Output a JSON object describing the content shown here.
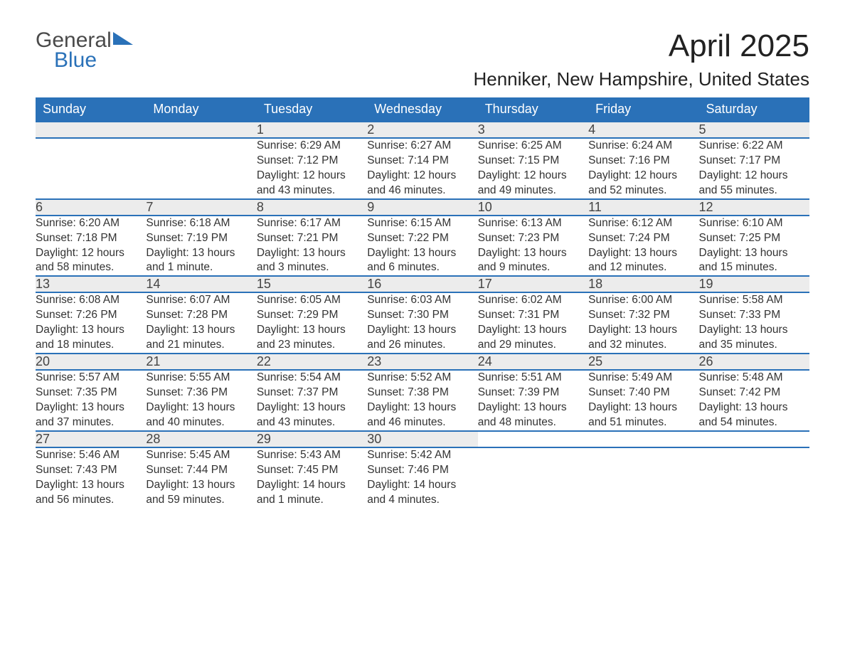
{
  "logo": {
    "line1": "General",
    "line2": "Blue"
  },
  "title": "April 2025",
  "subtitle": "Henniker, New Hampshire, United States",
  "day_headers": [
    "Sunday",
    "Monday",
    "Tuesday",
    "Wednesday",
    "Thursday",
    "Friday",
    "Saturday"
  ],
  "colors": {
    "header_bg": "#2a71b8",
    "header_text": "#ffffff",
    "daynum_bg": "#ececec",
    "row_divider": "#2a71b8",
    "text": "#333333",
    "page_bg": "#ffffff"
  },
  "weeks": [
    [
      null,
      null,
      {
        "n": "1",
        "sr": "Sunrise: 6:29 AM",
        "ss": "Sunset: 7:12 PM",
        "d1": "Daylight: 12 hours",
        "d2": "and 43 minutes."
      },
      {
        "n": "2",
        "sr": "Sunrise: 6:27 AM",
        "ss": "Sunset: 7:14 PM",
        "d1": "Daylight: 12 hours",
        "d2": "and 46 minutes."
      },
      {
        "n": "3",
        "sr": "Sunrise: 6:25 AM",
        "ss": "Sunset: 7:15 PM",
        "d1": "Daylight: 12 hours",
        "d2": "and 49 minutes."
      },
      {
        "n": "4",
        "sr": "Sunrise: 6:24 AM",
        "ss": "Sunset: 7:16 PM",
        "d1": "Daylight: 12 hours",
        "d2": "and 52 minutes."
      },
      {
        "n": "5",
        "sr": "Sunrise: 6:22 AM",
        "ss": "Sunset: 7:17 PM",
        "d1": "Daylight: 12 hours",
        "d2": "and 55 minutes."
      }
    ],
    [
      {
        "n": "6",
        "sr": "Sunrise: 6:20 AM",
        "ss": "Sunset: 7:18 PM",
        "d1": "Daylight: 12 hours",
        "d2": "and 58 minutes."
      },
      {
        "n": "7",
        "sr": "Sunrise: 6:18 AM",
        "ss": "Sunset: 7:19 PM",
        "d1": "Daylight: 13 hours",
        "d2": "and 1 minute."
      },
      {
        "n": "8",
        "sr": "Sunrise: 6:17 AM",
        "ss": "Sunset: 7:21 PM",
        "d1": "Daylight: 13 hours",
        "d2": "and 3 minutes."
      },
      {
        "n": "9",
        "sr": "Sunrise: 6:15 AM",
        "ss": "Sunset: 7:22 PM",
        "d1": "Daylight: 13 hours",
        "d2": "and 6 minutes."
      },
      {
        "n": "10",
        "sr": "Sunrise: 6:13 AM",
        "ss": "Sunset: 7:23 PM",
        "d1": "Daylight: 13 hours",
        "d2": "and 9 minutes."
      },
      {
        "n": "11",
        "sr": "Sunrise: 6:12 AM",
        "ss": "Sunset: 7:24 PM",
        "d1": "Daylight: 13 hours",
        "d2": "and 12 minutes."
      },
      {
        "n": "12",
        "sr": "Sunrise: 6:10 AM",
        "ss": "Sunset: 7:25 PM",
        "d1": "Daylight: 13 hours",
        "d2": "and 15 minutes."
      }
    ],
    [
      {
        "n": "13",
        "sr": "Sunrise: 6:08 AM",
        "ss": "Sunset: 7:26 PM",
        "d1": "Daylight: 13 hours",
        "d2": "and 18 minutes."
      },
      {
        "n": "14",
        "sr": "Sunrise: 6:07 AM",
        "ss": "Sunset: 7:28 PM",
        "d1": "Daylight: 13 hours",
        "d2": "and 21 minutes."
      },
      {
        "n": "15",
        "sr": "Sunrise: 6:05 AM",
        "ss": "Sunset: 7:29 PM",
        "d1": "Daylight: 13 hours",
        "d2": "and 23 minutes."
      },
      {
        "n": "16",
        "sr": "Sunrise: 6:03 AM",
        "ss": "Sunset: 7:30 PM",
        "d1": "Daylight: 13 hours",
        "d2": "and 26 minutes."
      },
      {
        "n": "17",
        "sr": "Sunrise: 6:02 AM",
        "ss": "Sunset: 7:31 PM",
        "d1": "Daylight: 13 hours",
        "d2": "and 29 minutes."
      },
      {
        "n": "18",
        "sr": "Sunrise: 6:00 AM",
        "ss": "Sunset: 7:32 PM",
        "d1": "Daylight: 13 hours",
        "d2": "and 32 minutes."
      },
      {
        "n": "19",
        "sr": "Sunrise: 5:58 AM",
        "ss": "Sunset: 7:33 PM",
        "d1": "Daylight: 13 hours",
        "d2": "and 35 minutes."
      }
    ],
    [
      {
        "n": "20",
        "sr": "Sunrise: 5:57 AM",
        "ss": "Sunset: 7:35 PM",
        "d1": "Daylight: 13 hours",
        "d2": "and 37 minutes."
      },
      {
        "n": "21",
        "sr": "Sunrise: 5:55 AM",
        "ss": "Sunset: 7:36 PM",
        "d1": "Daylight: 13 hours",
        "d2": "and 40 minutes."
      },
      {
        "n": "22",
        "sr": "Sunrise: 5:54 AM",
        "ss": "Sunset: 7:37 PM",
        "d1": "Daylight: 13 hours",
        "d2": "and 43 minutes."
      },
      {
        "n": "23",
        "sr": "Sunrise: 5:52 AM",
        "ss": "Sunset: 7:38 PM",
        "d1": "Daylight: 13 hours",
        "d2": "and 46 minutes."
      },
      {
        "n": "24",
        "sr": "Sunrise: 5:51 AM",
        "ss": "Sunset: 7:39 PM",
        "d1": "Daylight: 13 hours",
        "d2": "and 48 minutes."
      },
      {
        "n": "25",
        "sr": "Sunrise: 5:49 AM",
        "ss": "Sunset: 7:40 PM",
        "d1": "Daylight: 13 hours",
        "d2": "and 51 minutes."
      },
      {
        "n": "26",
        "sr": "Sunrise: 5:48 AM",
        "ss": "Sunset: 7:42 PM",
        "d1": "Daylight: 13 hours",
        "d2": "and 54 minutes."
      }
    ],
    [
      {
        "n": "27",
        "sr": "Sunrise: 5:46 AM",
        "ss": "Sunset: 7:43 PM",
        "d1": "Daylight: 13 hours",
        "d2": "and 56 minutes."
      },
      {
        "n": "28",
        "sr": "Sunrise: 5:45 AM",
        "ss": "Sunset: 7:44 PM",
        "d1": "Daylight: 13 hours",
        "d2": "and 59 minutes."
      },
      {
        "n": "29",
        "sr": "Sunrise: 5:43 AM",
        "ss": "Sunset: 7:45 PM",
        "d1": "Daylight: 14 hours",
        "d2": "and 1 minute."
      },
      {
        "n": "30",
        "sr": "Sunrise: 5:42 AM",
        "ss": "Sunset: 7:46 PM",
        "d1": "Daylight: 14 hours",
        "d2": "and 4 minutes."
      },
      null,
      null,
      null
    ]
  ]
}
